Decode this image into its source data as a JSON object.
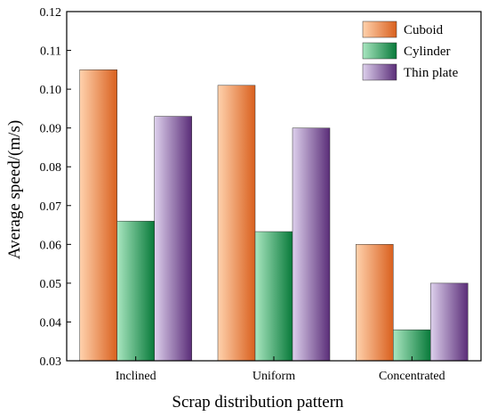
{
  "chart_data": {
    "type": "bar",
    "title": "",
    "xlabel": "Scrap distribution pattern",
    "ylabel": "Average speed/(m/s)",
    "categories": [
      "Inclined",
      "Uniform",
      "Concentrated"
    ],
    "ylim": [
      0.03,
      0.12
    ],
    "yticks": [
      "0.03",
      "0.04",
      "0.05",
      "0.06",
      "0.07",
      "0.08",
      "0.09",
      "0.10",
      "0.11",
      "0.12"
    ],
    "grid": false,
    "legend_position": "top-right",
    "series": [
      {
        "name": "Cuboid",
        "values": [
          0.105,
          0.101,
          0.06
        ],
        "color_light": "#ffd2ad",
        "color_dark": "#d9601e"
      },
      {
        "name": "Cylinder",
        "values": [
          0.066,
          0.0633,
          0.038
        ],
        "color_light": "#a9e6c0",
        "color_dark": "#087a3a"
      },
      {
        "name": "Thin plate",
        "values": [
          0.093,
          0.09,
          0.05
        ],
        "color_light": "#ddd0ec",
        "color_dark": "#5a2d78"
      }
    ]
  }
}
